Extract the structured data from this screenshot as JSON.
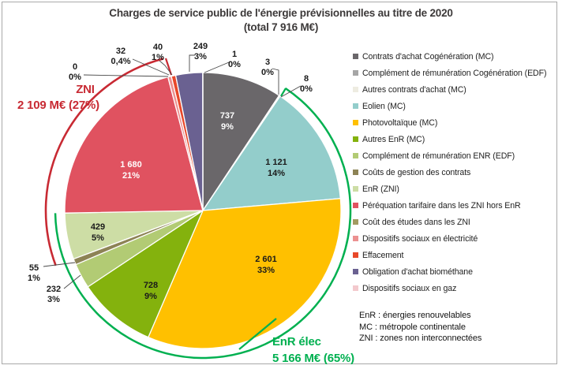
{
  "chart_data": {
    "type": "pie",
    "title": "Charges de service public de l'énergie prévisionnelles au titre de 2020",
    "subtitle": "(total 7 916 M€)",
    "total": 7916,
    "unit": "M€",
    "start_angle_deg": 0,
    "direction": "clockwise",
    "legend_position": "right",
    "slices": [
      {
        "label": "Contrats d'achat Cogénération (MC)",
        "value": 737,
        "value_label": "737",
        "pct": "9%",
        "color": "#6a676a",
        "text_color": "#ffffff",
        "label_placement": "inside"
      },
      {
        "label": "Complément de rémunération Cogénération (EDF)",
        "value": 3,
        "value_label": "3",
        "pct": "0%",
        "color": "#a6a6a6",
        "text_color": "#1a1a1a",
        "label_placement": "outside"
      },
      {
        "label": "Autres contrats d'achat (MC)",
        "value": 8,
        "value_label": "8",
        "pct": "0%",
        "color": "#eeece1",
        "text_color": "#1a1a1a",
        "label_placement": "outside"
      },
      {
        "label": "Eolien (MC)",
        "value": 1121,
        "value_label": "1 121",
        "pct": "14%",
        "color": "#93cdcb",
        "text_color": "#1a1a1a",
        "label_placement": "inside"
      },
      {
        "label": "Photovoltaïque (MC)",
        "value": 2601,
        "value_label": "2 601",
        "pct": "33%",
        "color": "#ffc000",
        "text_color": "#1a1a1a",
        "label_placement": "inside"
      },
      {
        "label": "Autres EnR (MC)",
        "value": 728,
        "value_label": "728",
        "pct": "9%",
        "color": "#84b20d",
        "text_color": "#1a1a1a",
        "label_placement": "inside"
      },
      {
        "label": "Complément de rémunération ENR (EDF)",
        "value": 232,
        "value_label": "232",
        "pct": "3%",
        "color": "#b2cb74",
        "text_color": "#1a1a1a",
        "label_placement": "outside"
      },
      {
        "label": "Coûts de gestion des contrats",
        "value": 55,
        "value_label": "55",
        "pct": "1%",
        "color": "#8d8355",
        "text_color": "#1a1a1a",
        "label_placement": "outside"
      },
      {
        "label": "EnR (ZNI)",
        "value": 429,
        "value_label": "429",
        "pct": "5%",
        "color": "#cddda5",
        "text_color": "#1a1a1a",
        "label_placement": "inside"
      },
      {
        "label": "Péréquation tarifaire dans les ZNI hors EnR",
        "value": 1680,
        "value_label": "1 680",
        "pct": "21%",
        "color": "#e05260",
        "text_color": "#ffffff",
        "label_placement": "inside"
      },
      {
        "label": "Coût des études dans les ZNI",
        "value": 0,
        "value_label": "0",
        "pct": "0%",
        "color": "#a29b61",
        "text_color": "#1a1a1a",
        "label_placement": "outside"
      },
      {
        "label": "Dispositifs sociaux en électricité",
        "value": 32,
        "value_label": "32",
        "pct": "0,4%",
        "color": "#ec9191",
        "text_color": "#1a1a1a",
        "label_placement": "outside"
      },
      {
        "label": "Effacement",
        "value": 40,
        "value_label": "40",
        "pct": "1%",
        "color": "#e8482a",
        "text_color": "#1a1a1a",
        "label_placement": "outside"
      },
      {
        "label": "Obligation d'achat biométhane",
        "value": 249,
        "value_label": "249",
        "pct": "3%",
        "color": "#6a6191",
        "text_color": "#1a1a1a",
        "label_placement": "outside"
      },
      {
        "label": "Dispositifs sociaux en gaz",
        "value": 1,
        "value_label": "1",
        "pct": "0%",
        "color": "#f3c9cd",
        "text_color": "#1a1a1a",
        "label_placement": "outside"
      }
    ],
    "group_annotations": [
      {
        "name": "ZNI",
        "lines": [
          "ZNI",
          "2 109 M€ (27%)"
        ],
        "value": 2109,
        "pct": "27%",
        "color": "#c82a33",
        "covers_slices": [
          8,
          9,
          10
        ]
      },
      {
        "name": "EnR élec",
        "lines": [
          "EnR  élec",
          "5 166 M€ (65%)"
        ],
        "value": 5166,
        "pct": "65%",
        "color": "#00b050",
        "covers_slices": [
          3,
          4,
          5,
          6,
          7,
          8
        ]
      }
    ]
  },
  "footnotes": [
    "EnR : énergies renouvelables",
    "MC : métropole continentale",
    "ZNI : zones non interconnectées"
  ]
}
